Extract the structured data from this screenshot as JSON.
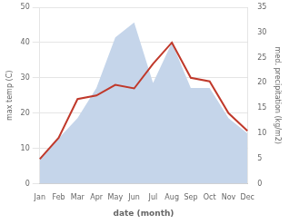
{
  "chart_data": {
    "type": "line",
    "xlabel": "date (month)",
    "ylabel": "max temp (C)",
    "y2label": "med. precipitation (kg/m2)",
    "categories": [
      "Jan",
      "Feb",
      "Mar",
      "Apr",
      "May",
      "Jun",
      "Jul",
      "Aug",
      "Sep",
      "Oct",
      "Nov",
      "Dec"
    ],
    "series": [
      {
        "type": "line",
        "color": "#c0392b",
        "values": [
          7,
          13,
          24,
          25,
          28,
          27,
          34,
          40,
          30,
          29,
          20,
          15
        ]
      },
      {
        "type": "area",
        "color": "#c5d5ea",
        "axis": "y2",
        "values": [
          5,
          9,
          13,
          19,
          29,
          32,
          20,
          28,
          19,
          19,
          13,
          10
        ]
      }
    ],
    "ylim": [
      0,
      50
    ],
    "yticks": [
      0,
      10,
      20,
      30,
      40,
      50
    ],
    "y2lim": [
      0,
      35
    ],
    "y2ticks": [
      0,
      5,
      10,
      15,
      20,
      25,
      30,
      35
    ],
    "grid": true
  }
}
